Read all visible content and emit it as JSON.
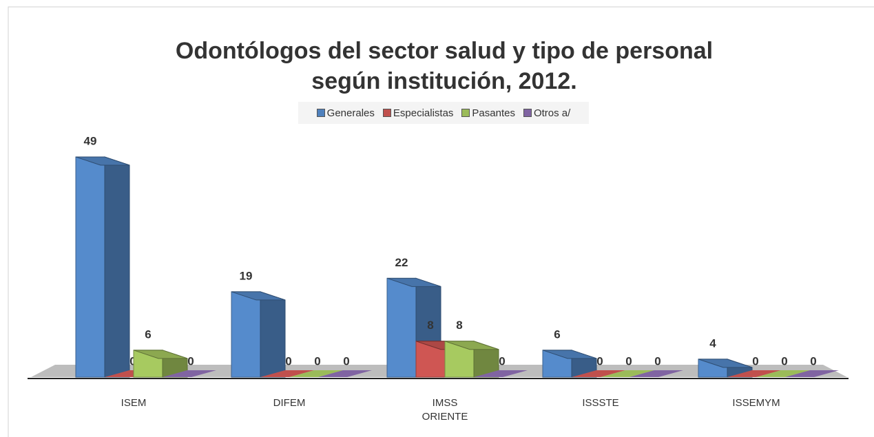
{
  "chart_data": {
    "type": "bar3d",
    "title": "Odontólogos del sector salud y tipo de personal",
    "subtitle": "según institución, 2012.",
    "categories": [
      "ISEM",
      "DIFEM",
      "IMSS ORIENTE",
      "ISSSTE",
      "ISSEMYM"
    ],
    "series": [
      {
        "name": "Generales",
        "color": "#4f81bd",
        "values": [
          49,
          19,
          22,
          6,
          4
        ]
      },
      {
        "name": "Especialistas",
        "color": "#c0504d",
        "values": [
          0,
          0,
          8,
          0,
          0
        ]
      },
      {
        "name": "Pasantes",
        "color": "#9bbb59",
        "values": [
          6,
          0,
          8,
          0,
          0
        ]
      },
      {
        "name": "Otros a/",
        "color": "#8064a2",
        "values": [
          0,
          0,
          0,
          0,
          0
        ]
      }
    ],
    "legend": "top"
  }
}
